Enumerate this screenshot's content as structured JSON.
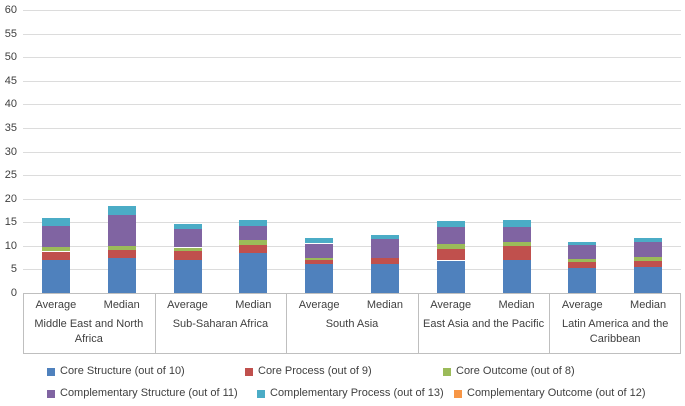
{
  "chart_data": {
    "type": "bar",
    "stacked": true,
    "title": "",
    "xlabel": "",
    "ylabel": "",
    "ylim": [
      0,
      60
    ],
    "ytick_step": 5,
    "yticks": [
      0,
      5,
      10,
      15,
      20,
      25,
      30,
      35,
      40,
      45,
      50,
      55,
      60
    ],
    "grid": true,
    "legend_position": "bottom",
    "groups": [
      "Middle East and North Africa",
      "Sub-Saharan Africa",
      "South Asia",
      "East Asia and the Pacific",
      "Latin America and the Caribbean"
    ],
    "categories_per_group": [
      "Average",
      "Median"
    ],
    "value_note": "values are [Average, Median] pairs per group, estimated from pixel heights",
    "series": [
      {
        "name": "Core Structure (out of 10)",
        "color": "#4F81BD",
        "values": [
          [
            7.0,
            7.5
          ],
          [
            7.1,
            8.5
          ],
          [
            6.1,
            6.1
          ],
          [
            6.9,
            7.0
          ],
          [
            5.3,
            5.6
          ]
        ]
      },
      {
        "name": "Core Process (out of 9)",
        "color": "#C0504D",
        "values": [
          [
            1.8,
            1.7
          ],
          [
            1.75,
            1.75
          ],
          [
            0.9,
            1.35
          ],
          [
            2.5,
            3.0
          ],
          [
            1.2,
            1.2
          ]
        ]
      },
      {
        "name": "Core Outcome (out of 8)",
        "color": "#9BBB59",
        "values": [
          [
            0.9,
            0.85
          ],
          [
            0.8,
            1.05
          ],
          [
            0.5,
            0.0
          ],
          [
            1.1,
            0.9
          ],
          [
            0.75,
            0.9
          ]
        ]
      },
      {
        "name": "Complementary Structure (out of 11)",
        "color": "#8064A2",
        "values": [
          [
            4.6,
            6.5
          ],
          [
            3.85,
            2.9
          ],
          [
            3.0,
            3.95
          ],
          [
            3.5,
            3.1
          ],
          [
            3.0,
            3.15
          ]
        ]
      },
      {
        "name": "Complementary Process (out of 13)",
        "color": "#4BACC6",
        "values": [
          [
            1.7,
            2.0
          ],
          [
            1.05,
            1.35
          ],
          [
            1.1,
            0.85
          ],
          [
            1.3,
            1.5
          ],
          [
            0.65,
            0.85
          ]
        ]
      },
      {
        "name": "Complementary Outcome (out of 12)",
        "color": "#F79646",
        "values": [
          [
            0,
            0
          ],
          [
            0,
            0
          ],
          [
            0,
            0
          ],
          [
            0,
            0
          ],
          [
            0,
            0
          ]
        ]
      }
    ]
  }
}
